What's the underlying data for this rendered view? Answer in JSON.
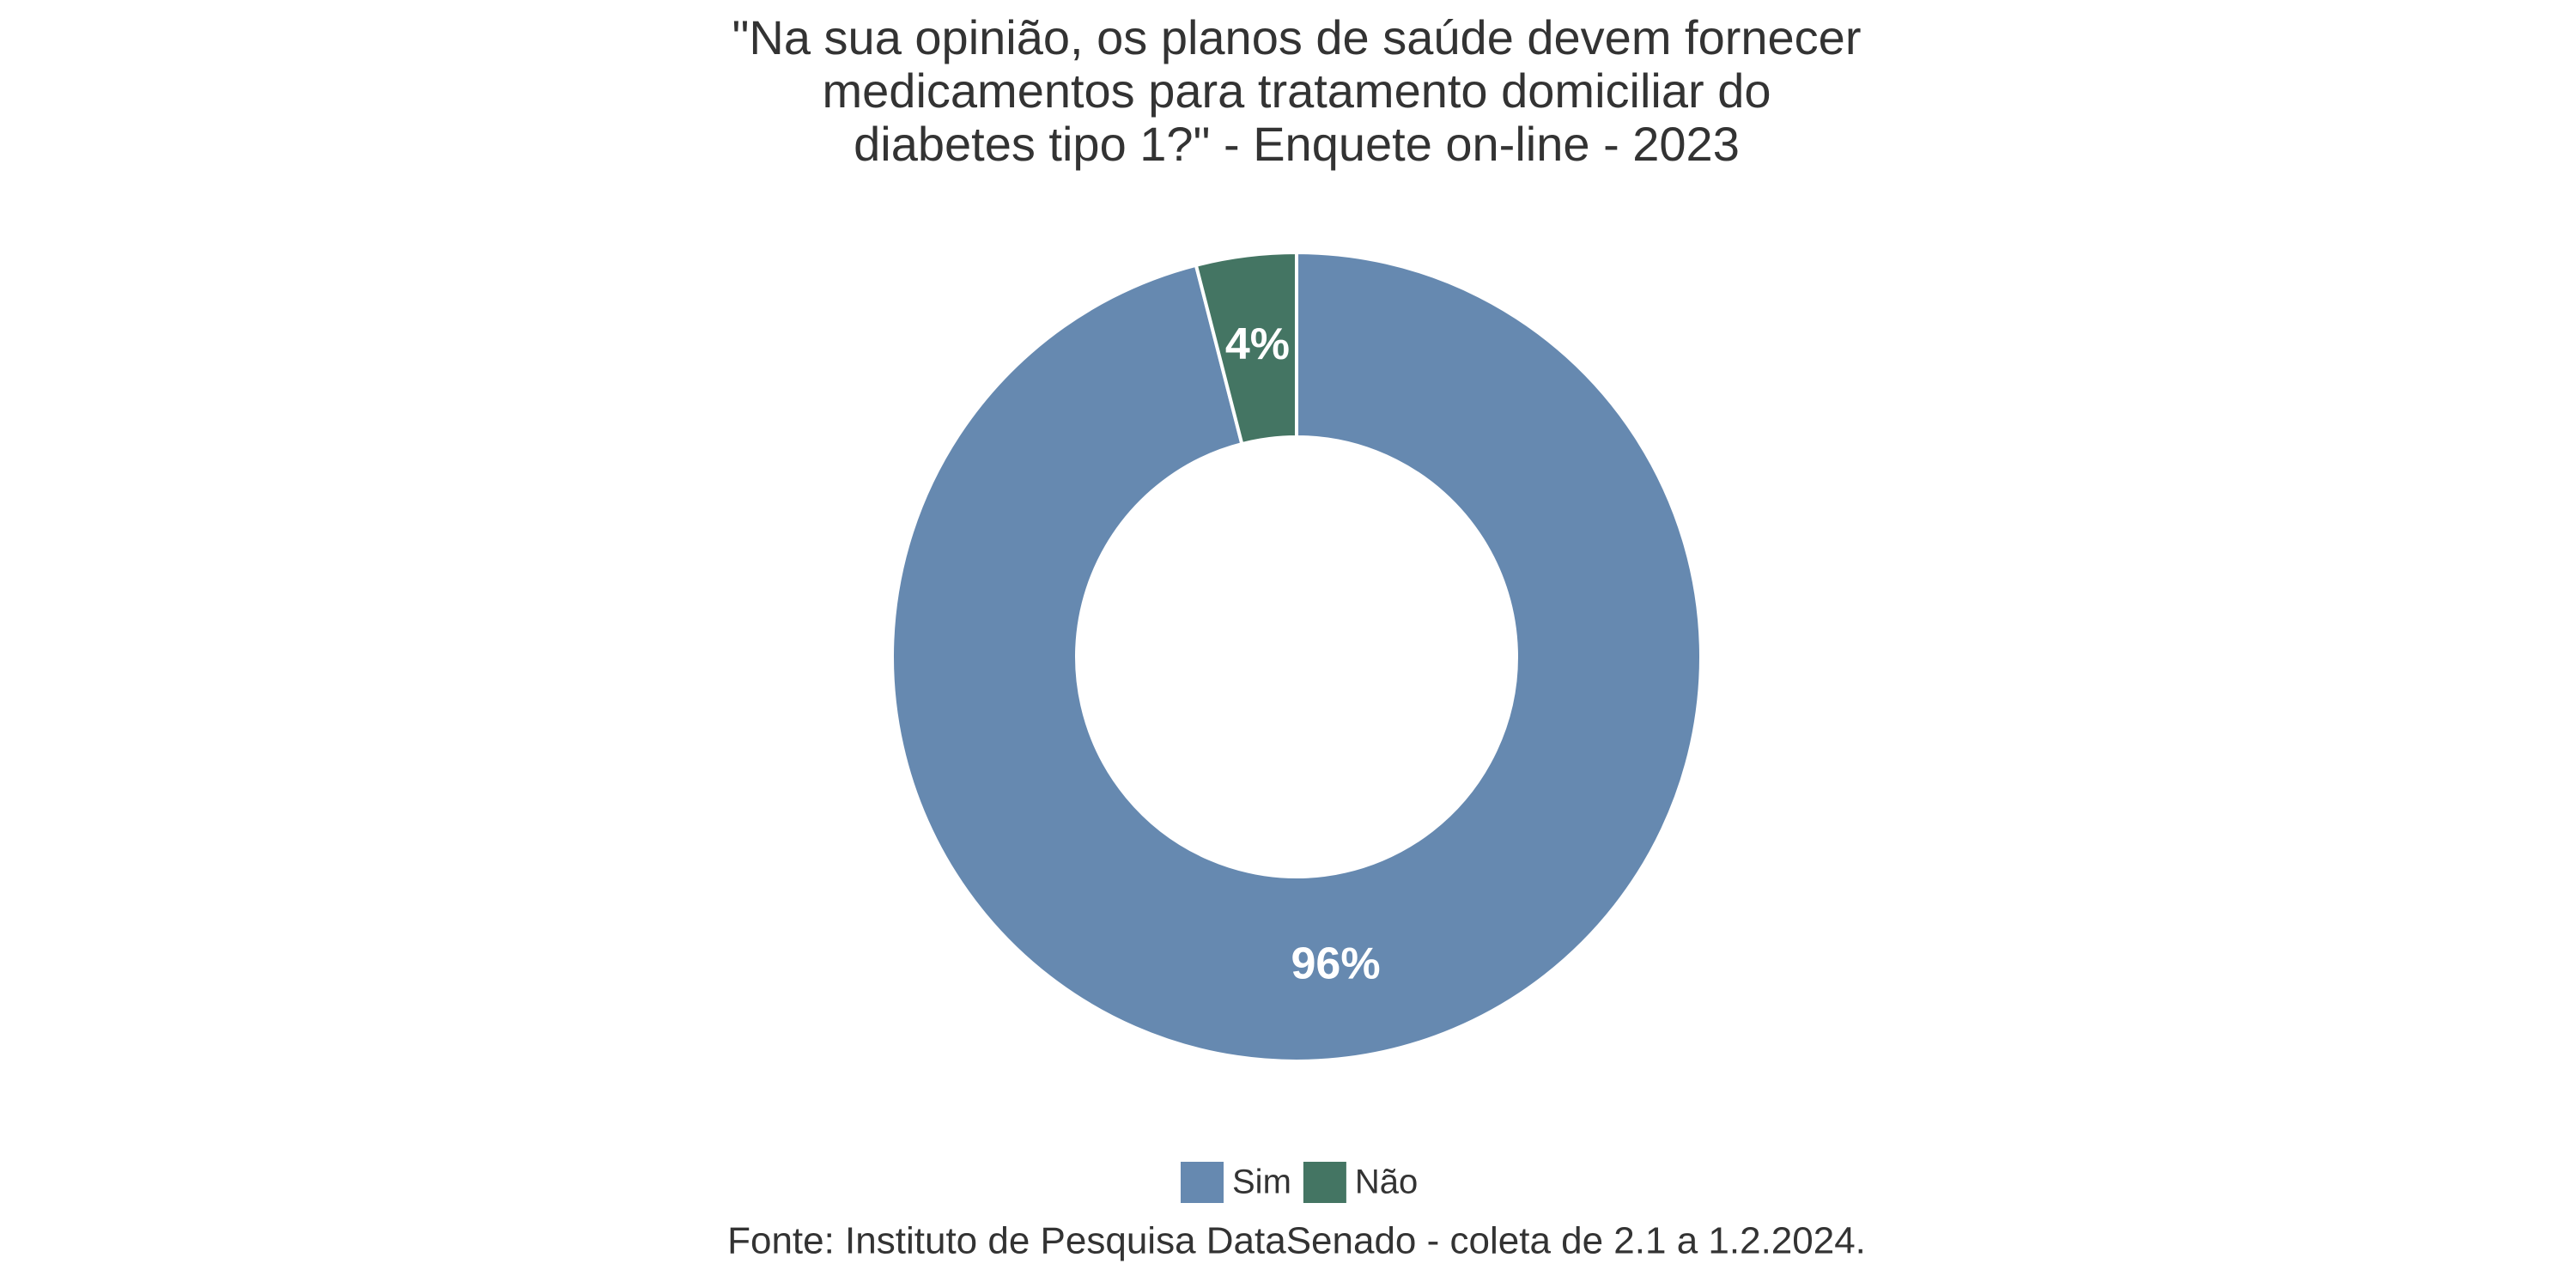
{
  "chart_data": {
    "type": "donut",
    "title": [
      "\"Na sua opinião, os planos de saúde devem fornecer",
      "medicamentos para tratamento domiciliar do",
      "diabetes tipo 1?\" - Enquete on-line - 2023"
    ],
    "categories": [
      "Sim",
      "Não"
    ],
    "values": [
      96,
      4
    ],
    "value_labels": [
      "96%",
      "4%"
    ],
    "colors": [
      "#6689b0",
      "#447563"
    ],
    "legend": "bottom",
    "source": "Fonte: Instituto de Pesquisa DataSenado - coleta de 2.1 a 1.2.2024."
  }
}
